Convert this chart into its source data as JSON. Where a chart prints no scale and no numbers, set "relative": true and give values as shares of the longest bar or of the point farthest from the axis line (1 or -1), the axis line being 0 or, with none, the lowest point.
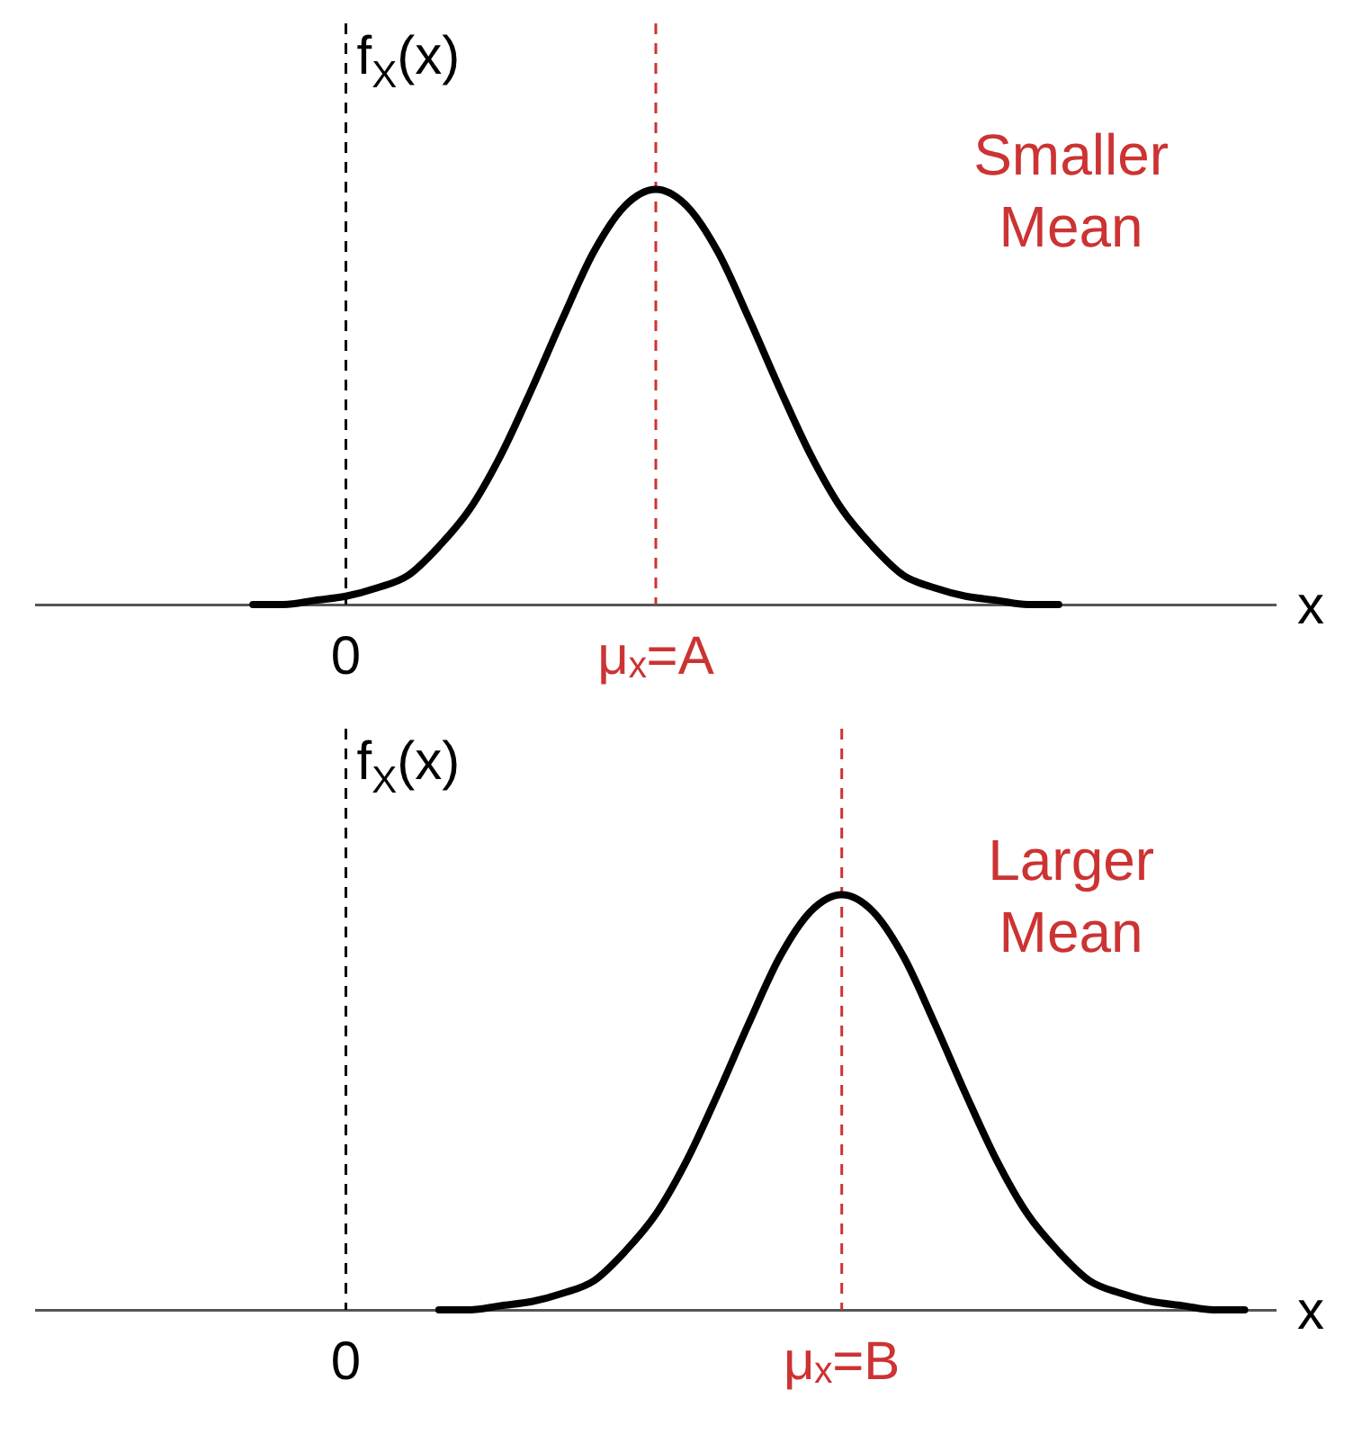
{
  "chart_data": [
    {
      "type": "line",
      "relative": true,
      "xlabel": "x",
      "ylabel": "f$_{X}$(x)",
      "grid": false,
      "legend": false,
      "marker": "none",
      "annotations": [
        "Smaller Mean"
      ],
      "categories": [
        null,
        null,
        null,
        null,
        null,
        null,
        null,
        null,
        null,
        null,
        "0",
        null,
        null,
        null,
        null,
        null,
        null,
        null,
        null,
        null,
        "μₓ=A",
        null,
        null,
        null,
        null,
        null,
        null,
        null,
        null,
        null,
        null,
        null,
        null,
        null,
        null,
        null,
        null,
        null,
        null,
        null,
        null
      ],
      "series": [
        {
          "color": "#000000",
          "values": [
            null,
            null,
            null,
            null,
            null,
            null,
            null,
            0,
            0,
            0.01,
            0.02,
            0.04,
            0.07,
            0.14,
            0.23,
            0.36,
            0.52,
            0.69,
            0.85,
            0.96,
            1,
            0.96,
            0.85,
            0.69,
            0.52,
            0.36,
            0.23,
            0.14,
            0.07,
            0.04,
            0.02,
            0.01,
            0,
            0,
            null,
            null,
            null,
            null,
            null,
            null,
            null
          ]
        }
      ],
      "ref_lines": [
        {
          "axis": "x",
          "value": "0",
          "color": "#000000",
          "line_style": "dashed"
        },
        {
          "axis": "x",
          "value": "μₓ=A",
          "color": "#cc3333",
          "line_style": "dashed"
        }
      ]
    },
    {
      "type": "line",
      "relative": true,
      "xlabel": "x",
      "ylabel": "f$_{X}$(x)",
      "grid": false,
      "legend": false,
      "marker": "none",
      "annotations": [
        "Larger Mean"
      ],
      "categories": [
        null,
        null,
        null,
        null,
        null,
        null,
        null,
        null,
        null,
        null,
        "0",
        null,
        null,
        null,
        null,
        null,
        null,
        null,
        null,
        null,
        null,
        null,
        null,
        null,
        null,
        null,
        "μₓ=B",
        null,
        null,
        null,
        null,
        null,
        null,
        null,
        null,
        null,
        null,
        null,
        null,
        null,
        null
      ],
      "series": [
        {
          "color": "#000000",
          "values": [
            null,
            null,
            null,
            null,
            null,
            null,
            null,
            null,
            null,
            null,
            null,
            null,
            null,
            0,
            0,
            0.01,
            0.02,
            0.04,
            0.07,
            0.14,
            0.23,
            0.36,
            0.52,
            0.69,
            0.85,
            0.96,
            1,
            0.96,
            0.85,
            0.69,
            0.52,
            0.36,
            0.23,
            0.14,
            0.07,
            0.04,
            0.02,
            0.01,
            0,
            0,
            null
          ]
        }
      ],
      "ref_lines": [
        {
          "axis": "x",
          "value": "0",
          "color": "#000000",
          "line_style": "dashed"
        },
        {
          "axis": "x",
          "value": "μₓ=B",
          "color": "#cc3333",
          "line_style": "dashed"
        }
      ]
    }
  ]
}
